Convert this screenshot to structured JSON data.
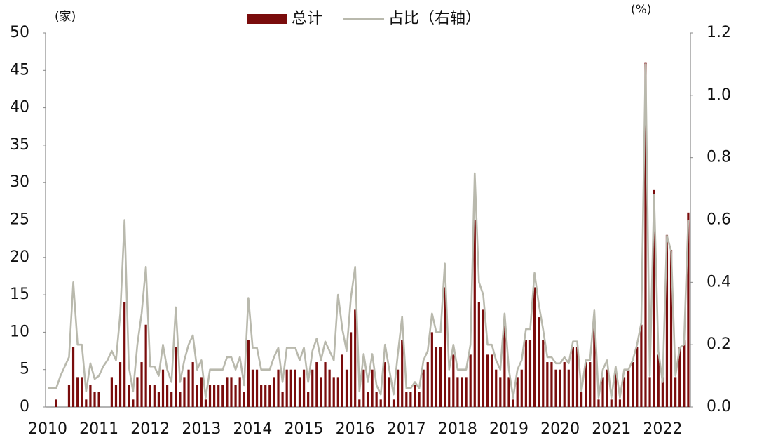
{
  "chart_data": {
    "type": "bar",
    "y_unit": "(家)",
    "y2_unit": "(%)",
    "categories": [
      "2010",
      null,
      null,
      null,
      null,
      null,
      null,
      null,
      null,
      null,
      null,
      null,
      "2011",
      null,
      null,
      null,
      null,
      null,
      null,
      null,
      null,
      null,
      null,
      null,
      "2012",
      null,
      null,
      null,
      null,
      null,
      null,
      null,
      null,
      null,
      null,
      null,
      "2013",
      null,
      null,
      null,
      null,
      null,
      null,
      null,
      null,
      null,
      null,
      null,
      "2014",
      null,
      null,
      null,
      null,
      null,
      null,
      null,
      null,
      null,
      null,
      null,
      "2015",
      null,
      null,
      null,
      null,
      null,
      null,
      null,
      null,
      null,
      null,
      null,
      "2016",
      null,
      null,
      null,
      null,
      null,
      null,
      null,
      null,
      null,
      null,
      null,
      "2017",
      null,
      null,
      null,
      null,
      null,
      null,
      null,
      null,
      null,
      null,
      null,
      "2018",
      null,
      null,
      null,
      null,
      null,
      null,
      null,
      null,
      null,
      null,
      null,
      "2019",
      null,
      null,
      null,
      null,
      null,
      null,
      null,
      null,
      null,
      null,
      null,
      "2020",
      null,
      null,
      null,
      null,
      null,
      null,
      null,
      null,
      null,
      null,
      null,
      "2021",
      null,
      null,
      null,
      null,
      null,
      null,
      null,
      null,
      null,
      null,
      null,
      "2022",
      null,
      null,
      null,
      null,
      null,
      null
    ],
    "series": [
      {
        "name": "总计",
        "type": "bar",
        "color": "#7a0c0c",
        "values": [
          0,
          0,
          1,
          0,
          0,
          3,
          8,
          4,
          4,
          1,
          3,
          2,
          2,
          0,
          0,
          4,
          3,
          6,
          14,
          3,
          1,
          4,
          6,
          11,
          3,
          3,
          2,
          5,
          3,
          2,
          8,
          2,
          4,
          5,
          6,
          3,
          4,
          1,
          3,
          3,
          3,
          3,
          4,
          4,
          3,
          4,
          2,
          9,
          5,
          5,
          3,
          3,
          3,
          4,
          5,
          2,
          5,
          5,
          5,
          4,
          5,
          2,
          5,
          6,
          4,
          6,
          5,
          4,
          4,
          7,
          5,
          10,
          13,
          1,
          5,
          2,
          5,
          2,
          1,
          6,
          4,
          1,
          5,
          9,
          2,
          2,
          3,
          2,
          5,
          6,
          10,
          8,
          8,
          16,
          4,
          7,
          4,
          4,
          4,
          7,
          25,
          14,
          13,
          7,
          7,
          5,
          4,
          11,
          4,
          1,
          4,
          5,
          9,
          9,
          16,
          12,
          9,
          6,
          6,
          5,
          5,
          6,
          5,
          8,
          8,
          2,
          6,
          6,
          11,
          1,
          4,
          5,
          1,
          5,
          1,
          4,
          5,
          6,
          8,
          11,
          46,
          4,
          29,
          7,
          4,
          23,
          21,
          4,
          8,
          9,
          26
        ]
      },
      {
        "name": "占比（右轴）",
        "type": "line",
        "axis": "y2",
        "color": "#b9b9ad",
        "values": [
          0.06,
          0.06,
          0.06,
          0.1,
          0.13,
          0.16,
          0.4,
          0.2,
          0.2,
          0.05,
          0.14,
          0.09,
          0.1,
          0.13,
          0.15,
          0.18,
          0.15,
          0.3,
          0.6,
          0.13,
          0.05,
          0.2,
          0.3,
          0.45,
          0.13,
          0.13,
          0.1,
          0.2,
          0.12,
          0.08,
          0.32,
          0.08,
          0.15,
          0.2,
          0.23,
          0.12,
          0.15,
          0.03,
          0.12,
          0.12,
          0.12,
          0.12,
          0.16,
          0.16,
          0.12,
          0.16,
          0.07,
          0.35,
          0.19,
          0.19,
          0.12,
          0.12,
          0.12,
          0.16,
          0.19,
          0.08,
          0.19,
          0.19,
          0.19,
          0.15,
          0.19,
          0.08,
          0.18,
          0.22,
          0.15,
          0.21,
          0.18,
          0.15,
          0.36,
          0.25,
          0.18,
          0.35,
          0.45,
          0.05,
          0.17,
          0.08,
          0.17,
          0.07,
          0.04,
          0.2,
          0.12,
          0.04,
          0.17,
          0.29,
          0.06,
          0.06,
          0.08,
          0.06,
          0.15,
          0.18,
          0.3,
          0.24,
          0.24,
          0.46,
          0.12,
          0.2,
          0.12,
          0.12,
          0.12,
          0.2,
          0.75,
          0.4,
          0.36,
          0.2,
          0.2,
          0.15,
          0.12,
          0.3,
          0.12,
          0.03,
          0.12,
          0.15,
          0.25,
          0.25,
          0.43,
          0.33,
          0.25,
          0.16,
          0.16,
          0.14,
          0.14,
          0.16,
          0.14,
          0.21,
          0.21,
          0.05,
          0.15,
          0.15,
          0.31,
          0.03,
          0.12,
          0.15,
          0.03,
          0.13,
          0.03,
          0.12,
          0.12,
          0.15,
          0.2,
          0.27,
          1.1,
          0.1,
          0.68,
          0.18,
          0.08,
          0.55,
          0.5,
          0.1,
          0.19,
          0.2,
          0.6
        ]
      }
    ],
    "ylim": [
      0,
      50
    ],
    "yticks": [
      0,
      5,
      10,
      15,
      20,
      25,
      30,
      35,
      40,
      45,
      50
    ],
    "y2lim": [
      0,
      1.2
    ],
    "y2ticks": [
      {
        "value": 0,
        "label": "0.0"
      },
      0.2,
      0.4,
      0.6,
      0.8,
      {
        "value": 1,
        "label": "1.0"
      },
      1.2
    ],
    "legend": "top"
  }
}
